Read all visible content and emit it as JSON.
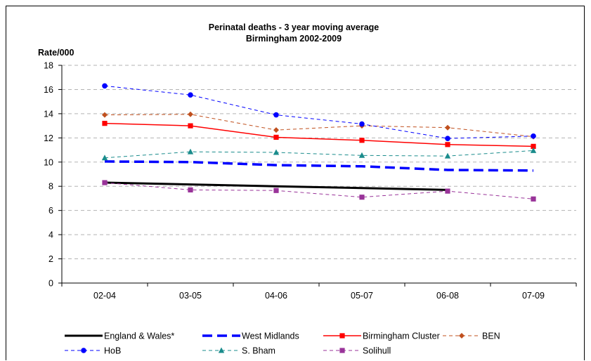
{
  "chart_data": {
    "type": "line",
    "title": "Perinatal deaths - 3 year moving average",
    "subtitle": "Birmingham 2002-2009",
    "ylabel": "Rate/000",
    "xlabel": "",
    "categories": [
      "02-04",
      "03-05",
      "04-06",
      "05-07",
      "06-08",
      "07-09"
    ],
    "ylim": [
      0,
      18
    ],
    "yticks": [
      0,
      2,
      4,
      6,
      8,
      10,
      12,
      14,
      16,
      18
    ],
    "grid": "horizontal dashed",
    "legend_position": "bottom",
    "series": [
      {
        "name": "England & Wales*",
        "values": [
          8.3,
          8.15,
          8.0,
          7.85,
          7.7,
          null
        ],
        "color": "#000000",
        "dash": "",
        "width": 3,
        "marker": "none"
      },
      {
        "name": "West Midlands",
        "values": [
          10.05,
          10.0,
          9.75,
          9.65,
          9.35,
          9.3
        ],
        "color": "#0000ff",
        "dash": "14,7",
        "width": 3.5,
        "marker": "none"
      },
      {
        "name": "Birmingham Cluster",
        "values": [
          13.2,
          13.0,
          12.05,
          11.8,
          11.45,
          11.3
        ],
        "color": "#ff0000",
        "dash": "",
        "width": 1.5,
        "marker": "square"
      },
      {
        "name": "BEN",
        "values": [
          13.9,
          13.95,
          12.65,
          13.0,
          12.85,
          12.1
        ],
        "color": "#c0501e",
        "dash": "5,4",
        "width": 1,
        "marker": "diamond"
      },
      {
        "name": "HoB",
        "values": [
          16.3,
          15.55,
          13.9,
          13.15,
          11.95,
          12.15
        ],
        "color": "#0000ff",
        "dash": "5,4",
        "width": 1,
        "marker": "circle"
      },
      {
        "name": "S. Bham",
        "values": [
          10.35,
          10.85,
          10.8,
          10.55,
          10.5,
          10.95
        ],
        "color": "#1a8c8c",
        "dash": "5,4",
        "width": 1,
        "marker": "triangle"
      },
      {
        "name": "Solihull",
        "values": [
          8.3,
          7.7,
          7.65,
          7.1,
          7.6,
          6.95
        ],
        "color": "#993399",
        "dash": "5,4",
        "width": 1,
        "marker": "square"
      }
    ]
  }
}
